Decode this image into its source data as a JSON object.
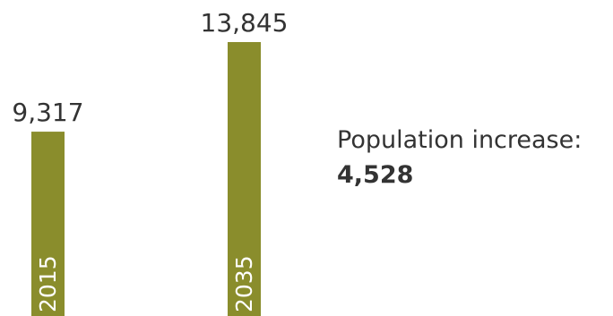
{
  "chart_data": {
    "type": "bar",
    "categories": [
      "2015",
      "2035"
    ],
    "values": [
      9317,
      13845
    ],
    "value_labels": [
      "9,317",
      "13,845"
    ],
    "bar_color": "#8a8d2c",
    "title": "",
    "xlabel": "",
    "ylabel": "",
    "ylim": [
      0,
      13845
    ],
    "grid": false,
    "annotation": {
      "label": "Population increase:",
      "value": "4,528"
    }
  }
}
